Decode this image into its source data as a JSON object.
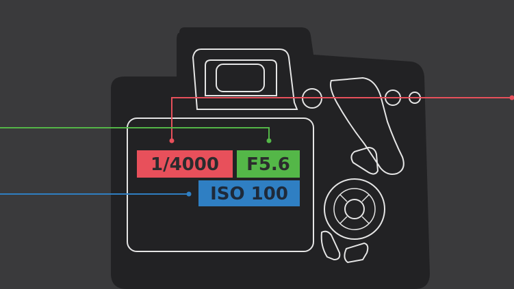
{
  "settings": {
    "shutter": {
      "text": "1/4000",
      "color": "#e8505b"
    },
    "aperture": {
      "text": "F5.6",
      "color": "#54b748"
    },
    "iso": {
      "text": "ISO 100",
      "color": "#2f7fc3"
    }
  },
  "colors": {
    "background": "#3a3a3c",
    "camera_body": "#222224",
    "outline": "#e6e6e6"
  }
}
